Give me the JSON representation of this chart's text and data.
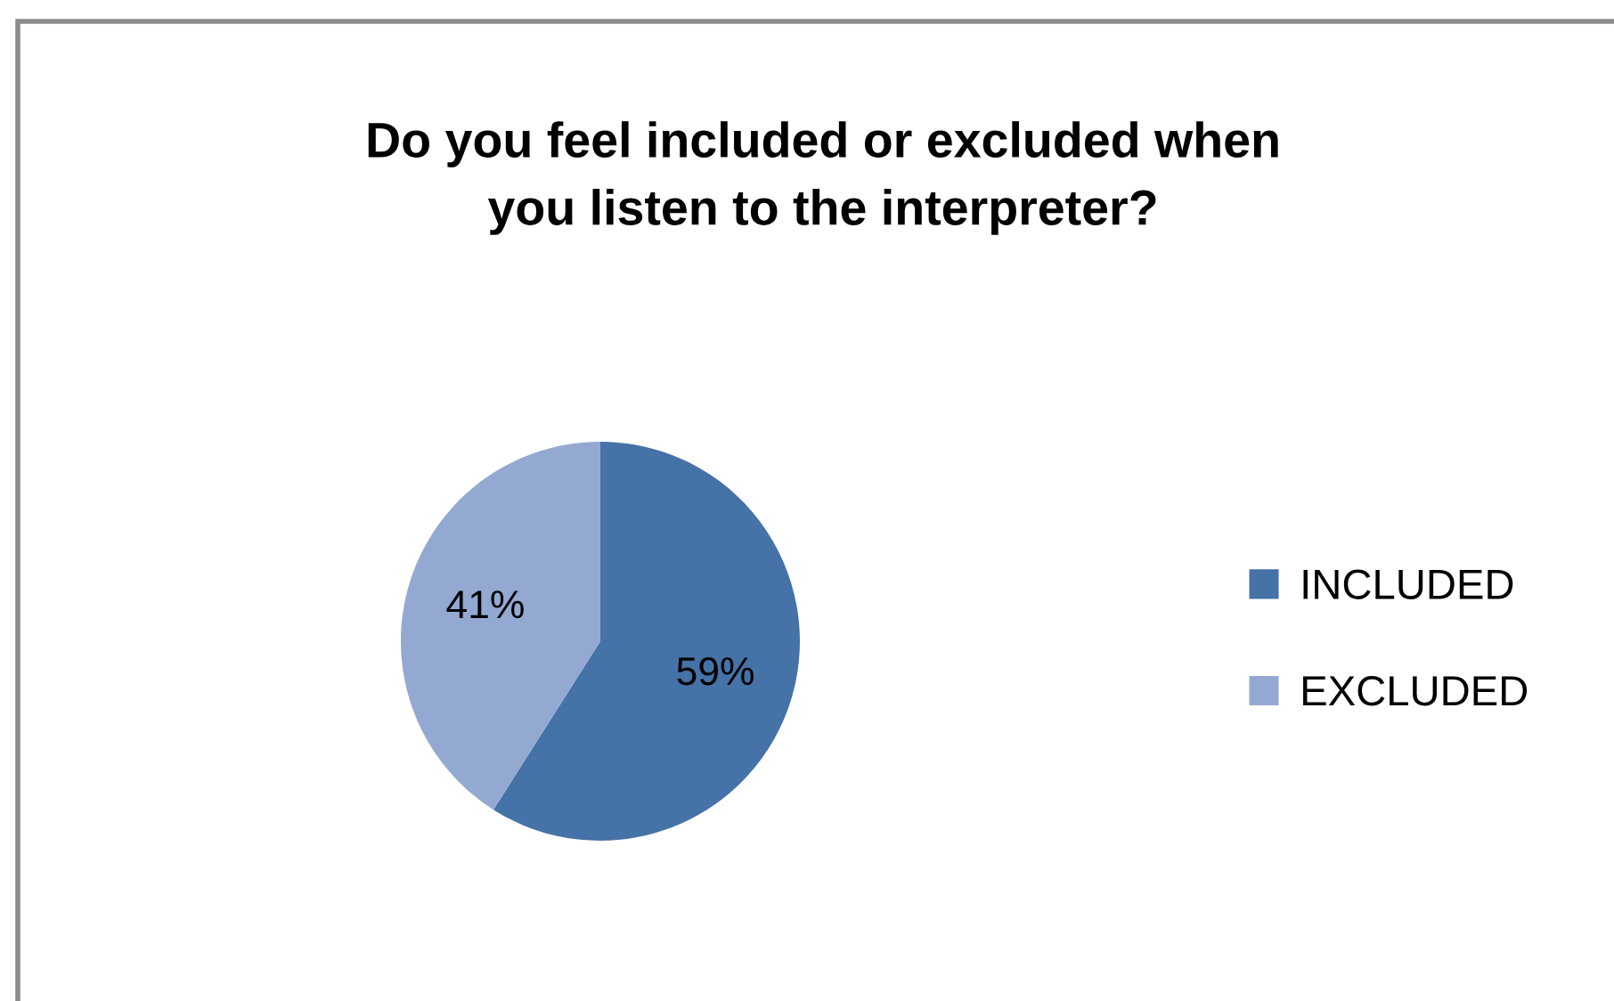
{
  "chart_data": {
    "type": "pie",
    "title": "Do you feel included or excluded when\nyou listen to the interpreter?",
    "categories": [
      "INCLUDED",
      "EXCLUDED"
    ],
    "values": [
      59,
      41
    ],
    "colors": [
      "#4572a7",
      "#94a9d2"
    ],
    "value_labels": [
      "59%",
      "41%"
    ],
    "legend": "right"
  }
}
